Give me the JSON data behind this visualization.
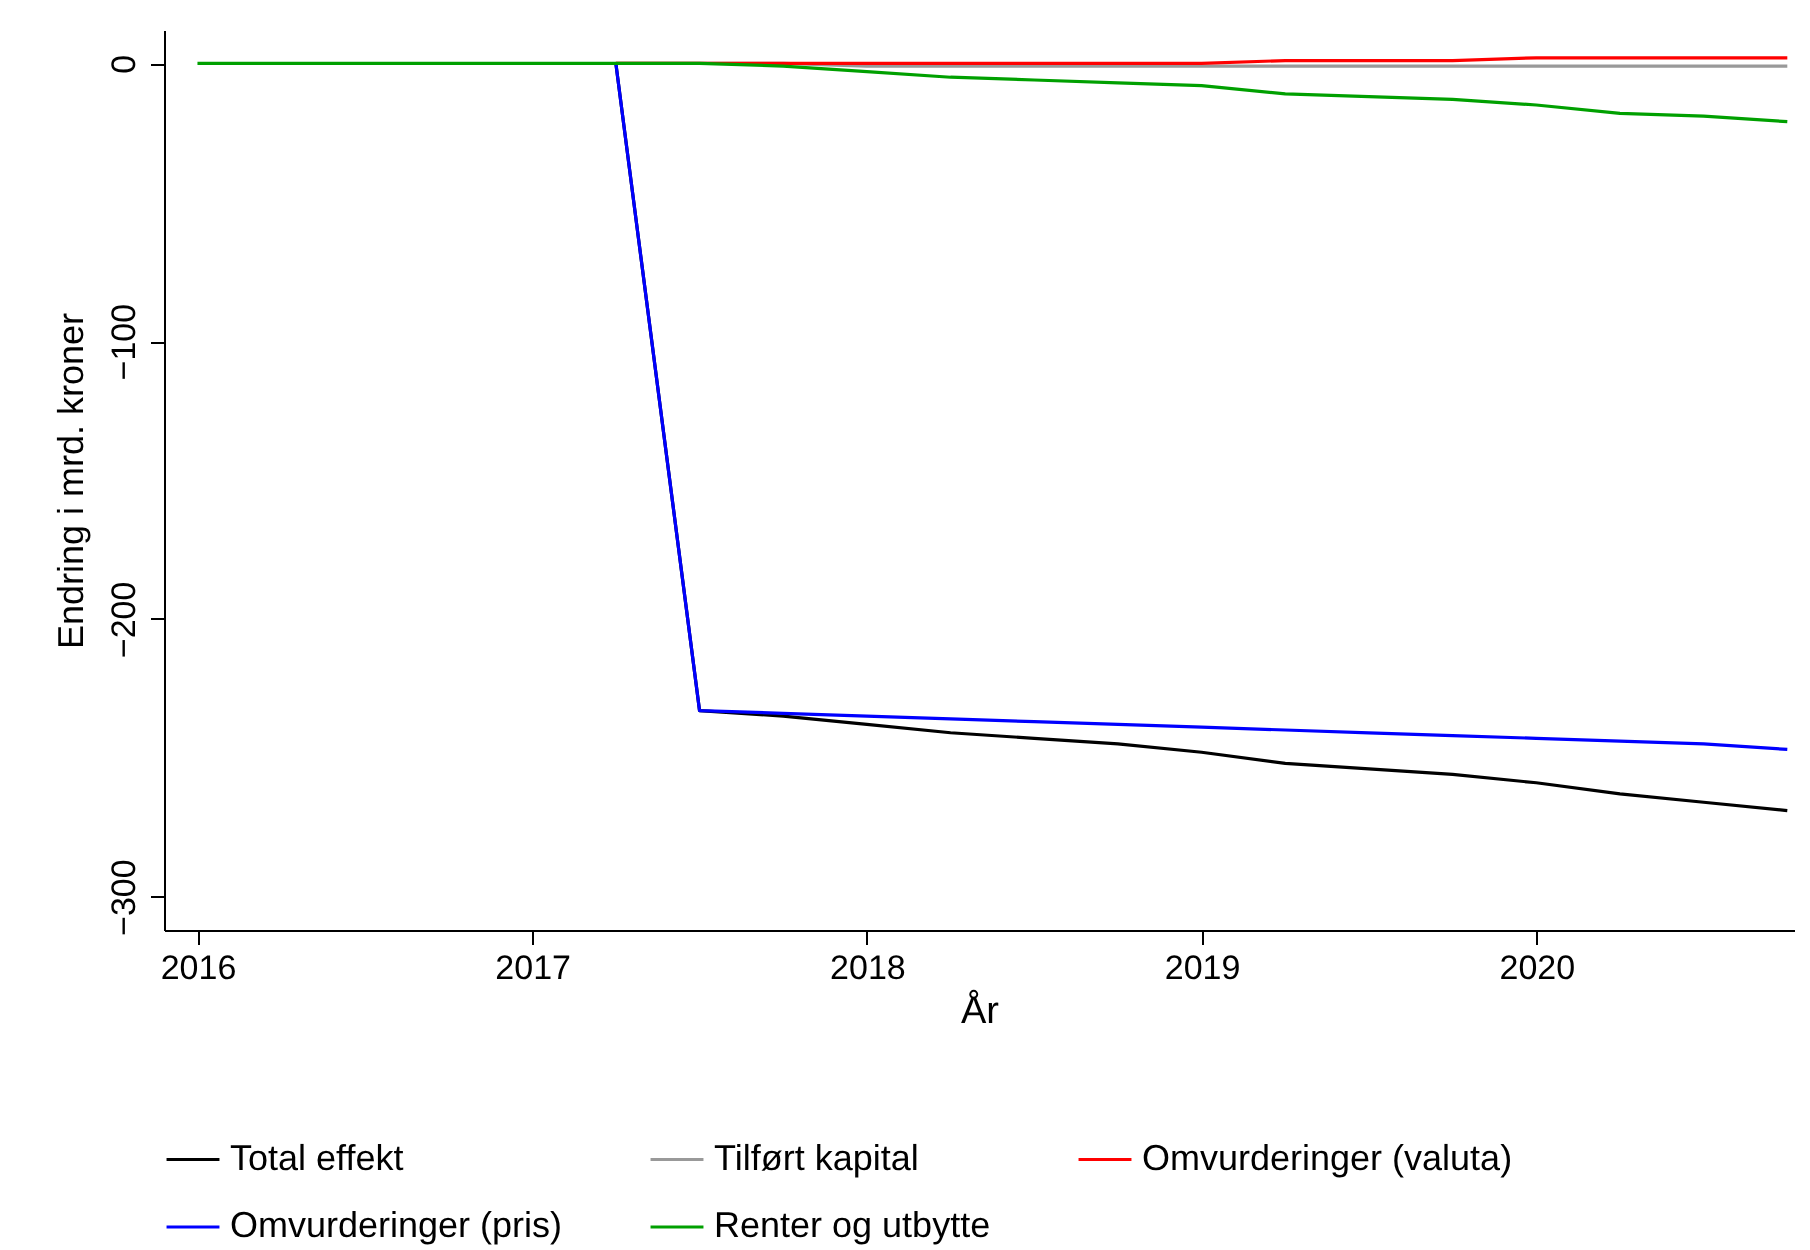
{
  "chart_data": {
    "type": "line",
    "xlabel": "År",
    "ylabel": "Endring i mrd. kroner",
    "x": [
      2016,
      2016.25,
      2016.5,
      2016.75,
      2017,
      2017.25,
      2017.5,
      2017.75,
      2018,
      2018.25,
      2018.5,
      2018.75,
      2019,
      2019.25,
      2019.5,
      2019.75,
      2020,
      2020.25,
      2020.5,
      2020.75
    ],
    "series": [
      {
        "name": "Total effekt",
        "color": "#000000",
        "values": [
          null,
          null,
          null,
          null,
          null,
          0,
          -233,
          -235,
          -238,
          -241,
          -243,
          -245,
          -248,
          -252,
          -254,
          -256,
          -259,
          -263,
          -266,
          -269
        ]
      },
      {
        "name": "Tilført kapital",
        "color": "#999999",
        "values": [
          null,
          null,
          null,
          null,
          null,
          0,
          0,
          0,
          -1,
          -1,
          -1,
          -1,
          -1,
          -1,
          -1,
          -1,
          -1,
          -1,
          -1,
          -1
        ]
      },
      {
        "name": "Omvurderinger (valuta)",
        "color": "#ff0000",
        "values": [
          null,
          null,
          null,
          null,
          null,
          0,
          0,
          0,
          0,
          0,
          0,
          0,
          0,
          1,
          1,
          1,
          2,
          2,
          2,
          2
        ]
      },
      {
        "name": "Omvurderinger (pris)",
        "color": "#0000ff",
        "values": [
          null,
          null,
          null,
          null,
          null,
          0,
          -233,
          -234,
          -235,
          -236,
          -237,
          -238,
          -239,
          -240,
          -241,
          -242,
          -243,
          -244,
          -245,
          -247
        ]
      },
      {
        "name": "Renter og utbytte",
        "color": "#00a000",
        "values": [
          0,
          0,
          0,
          0,
          0,
          0,
          0,
          -1,
          -3,
          -5,
          -6,
          -7,
          -8,
          -11,
          -12,
          -13,
          -15,
          -18,
          -19,
          -21
        ]
      }
    ],
    "xlim": [
      2015.9,
      2020.77
    ],
    "xticks": [
      2016,
      2017,
      2018,
      2019,
      2020
    ],
    "ylim": [
      -312,
      12
    ],
    "yticks": [
      0,
      -100,
      -200,
      -300
    ],
    "legend": "bottom",
    "line_style": "solid"
  }
}
